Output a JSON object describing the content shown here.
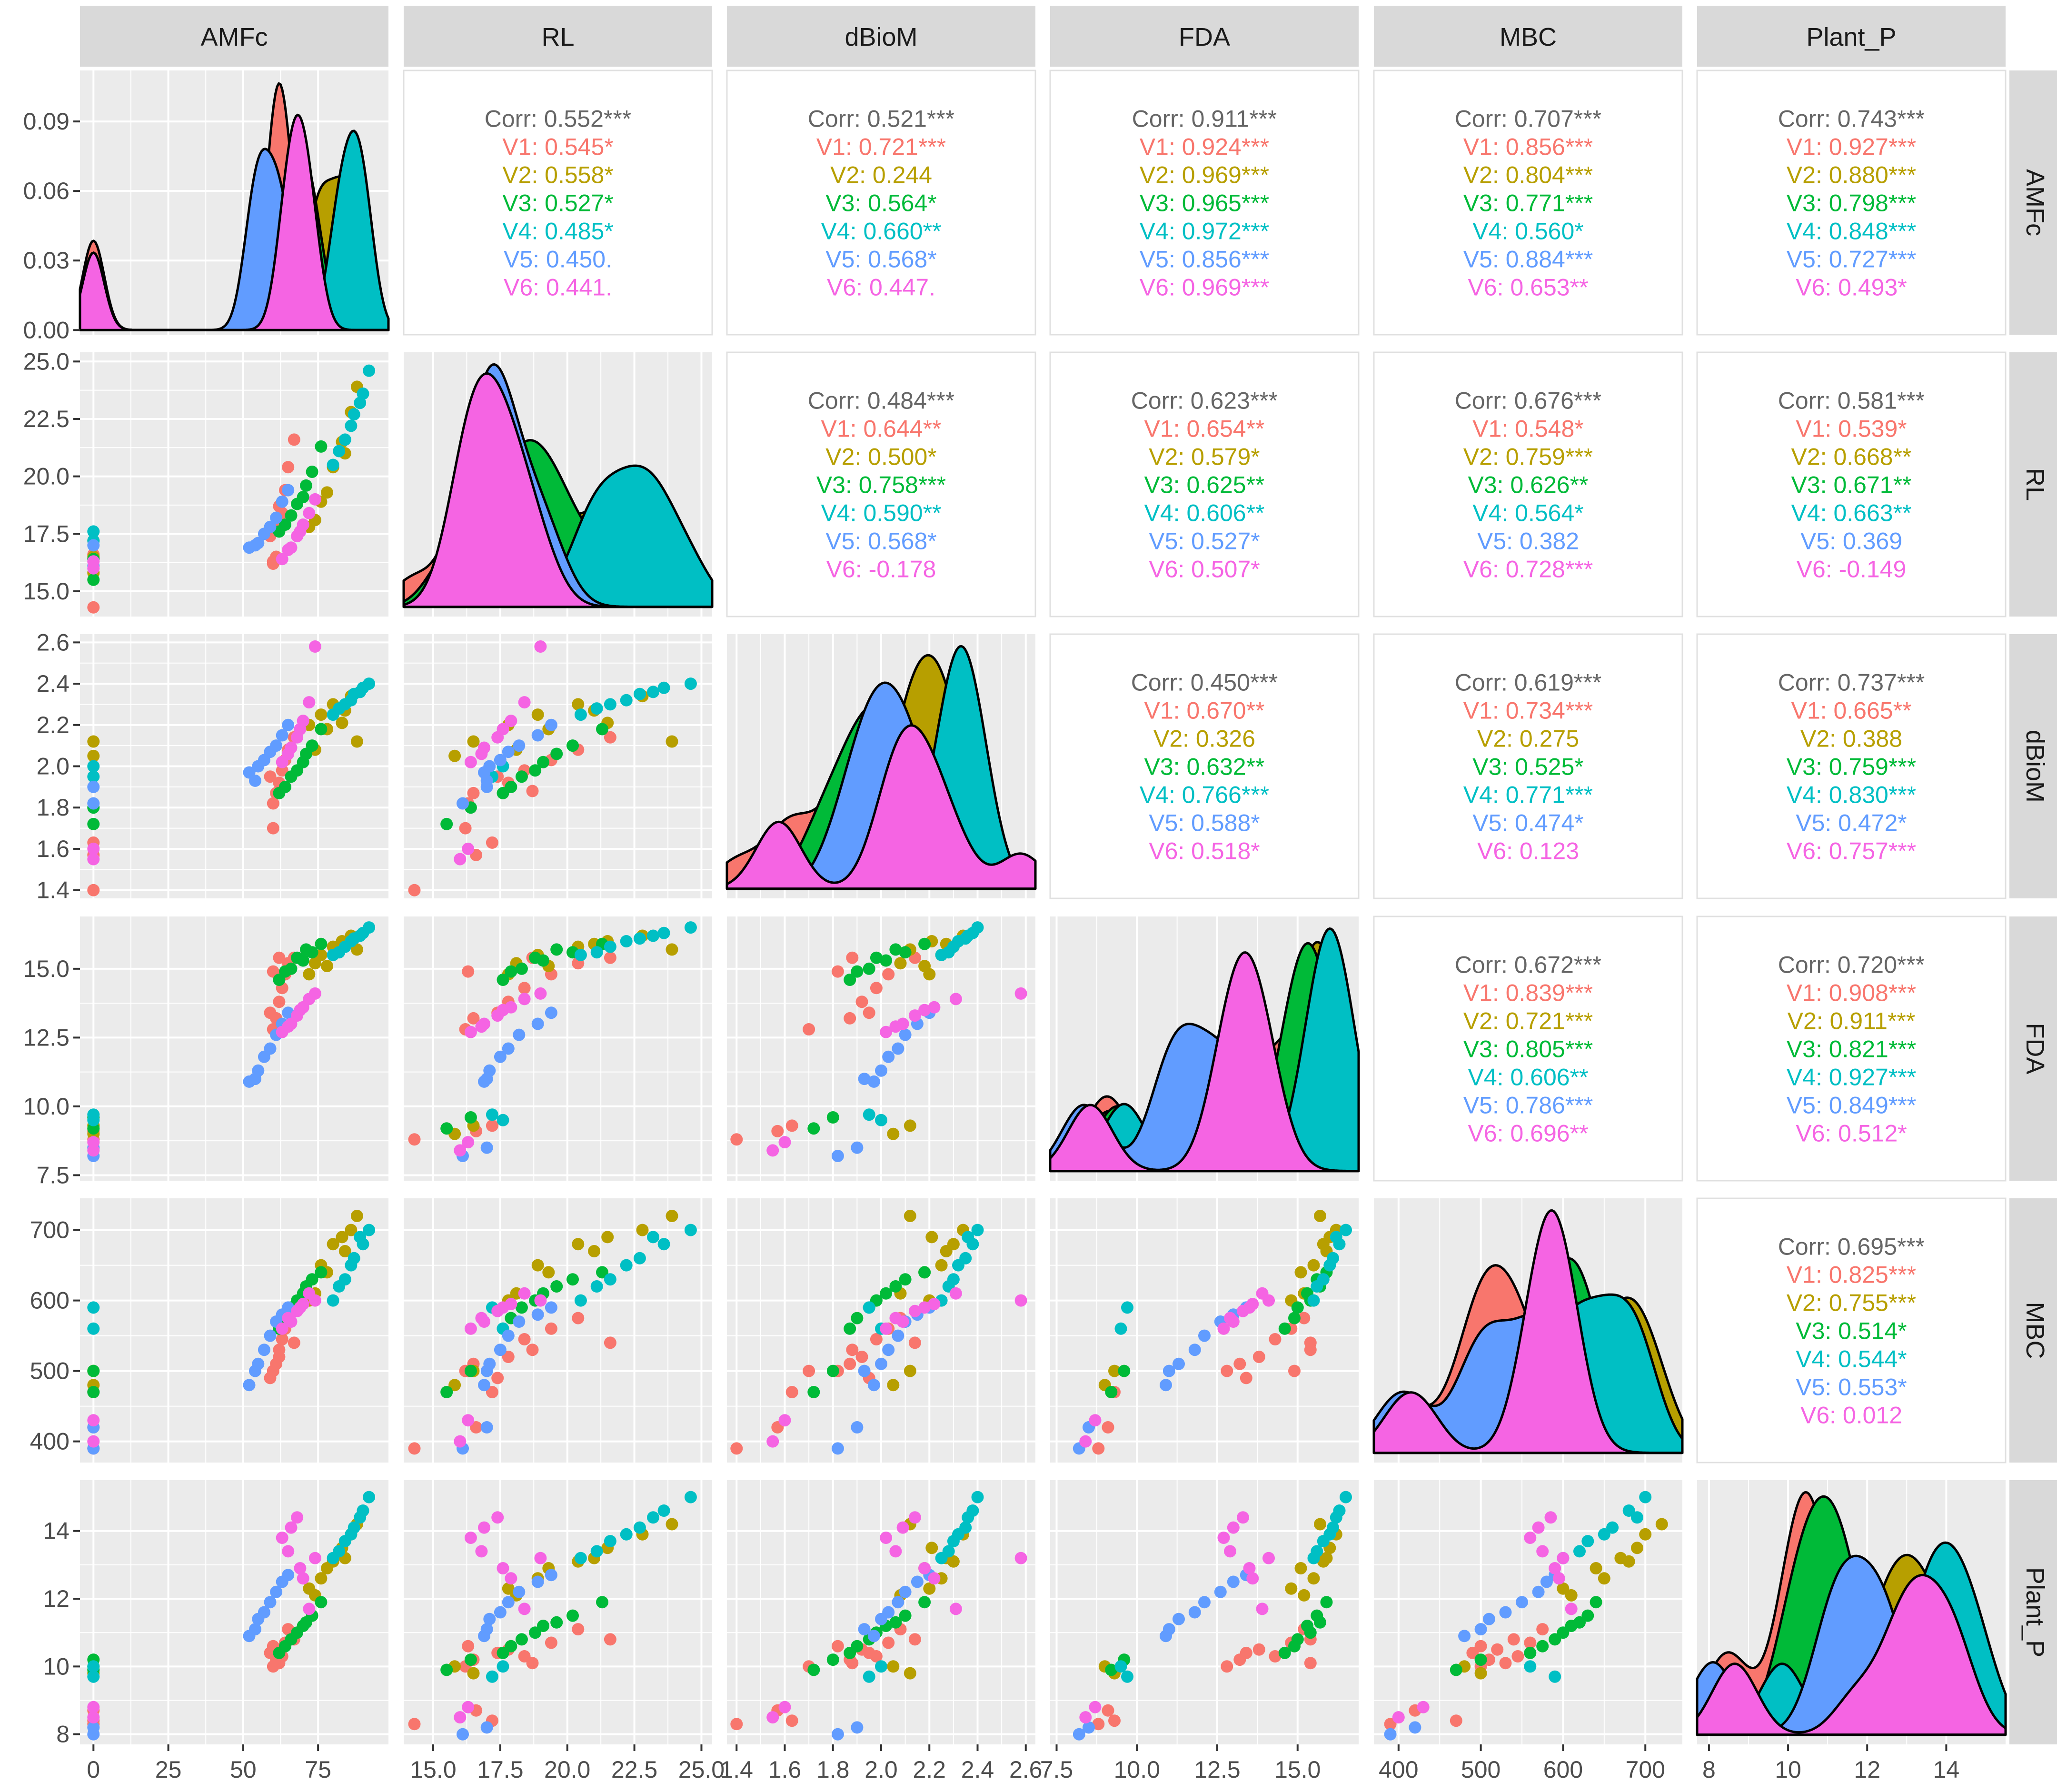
{
  "chart_data": {
    "type": "scatter",
    "title": "",
    "variables": [
      "AMFc",
      "RL",
      "dBioM",
      "FDA",
      "MBC",
      "Plant_P"
    ],
    "groups": [
      "V1",
      "V2",
      "V3",
      "V4",
      "V5",
      "V6"
    ],
    "group_colors": [
      "#F8766D",
      "#B79F00",
      "#00BA38",
      "#00BFC4",
      "#619CFF",
      "#F564E3"
    ],
    "corr_label_color": "#666666",
    "panel_background": "#EBEBEB",
    "grid_color": "#FFFFFF",
    "strip_background": "#D9D9D9",
    "x_ticks": {
      "AMFc": [
        "0",
        "25",
        "50",
        "75"
      ],
      "RL": [
        "15.0",
        "17.5",
        "20.0",
        "22.5",
        "25.0"
      ],
      "dBioM": [
        "1.4",
        "1.6",
        "1.8",
        "2.0",
        "2.2",
        "2.4",
        "2.6"
      ],
      "FDA": [
        "7.5",
        "10.0",
        "12.5",
        "15.0"
      ],
      "MBC": [
        "400",
        "500",
        "600",
        "700"
      ],
      "Plant_P": [
        "8",
        "10",
        "12",
        "14"
      ]
    },
    "x_tick_values": {
      "AMFc": [
        0,
        25,
        50,
        75
      ],
      "RL": [
        15.0,
        17.5,
        20.0,
        22.5,
        25.0
      ],
      "dBioM": [
        1.4,
        1.6,
        1.8,
        2.0,
        2.2,
        2.4,
        2.6
      ],
      "FDA": [
        7.5,
        10.0,
        12.5,
        15.0
      ],
      "MBC": [
        400,
        500,
        600,
        700
      ],
      "Plant_P": [
        8,
        10,
        12,
        14
      ]
    },
    "ranges": {
      "AMFc": [
        -4.5,
        98.5
      ],
      "RL": [
        13.9,
        25.4
      ],
      "dBioM": [
        1.36,
        2.64
      ],
      "FDA": [
        7.3,
        16.9
      ],
      "MBC": [
        370,
        745
      ],
      "Plant_P": [
        7.7,
        15.5
      ]
    },
    "y_ticks": {
      "AMFc": [
        "0.00",
        "0.03",
        "0.06",
        "0.09"
      ],
      "RL": [
        "15.0",
        "17.5",
        "20.0",
        "22.5",
        "25.0"
      ],
      "dBioM": [
        "1.4",
        "1.6",
        "1.8",
        "2.0",
        "2.2",
        "2.4",
        "2.6"
      ],
      "FDA": [
        "7.5",
        "10.0",
        "12.5",
        "15.0"
      ],
      "MBC": [
        "400",
        "500",
        "600",
        "700"
      ],
      "Plant_P": [
        "8",
        "10",
        "12",
        "14"
      ]
    },
    "y_tick_values": {
      "AMFc": [
        0.0,
        0.03,
        0.06,
        0.09
      ],
      "RL": [
        15.0,
        17.5,
        20.0,
        22.5,
        25.0
      ],
      "dBioM": [
        1.4,
        1.6,
        1.8,
        2.0,
        2.2,
        2.4,
        2.6
      ],
      "FDA": [
        7.5,
        10.0,
        12.5,
        15.0
      ],
      "MBC": [
        400,
        500,
        600,
        700
      ],
      "Plant_P": [
        8,
        10,
        12,
        14
      ]
    },
    "amfc_density_ylim": [
      -0.002,
      0.112
    ],
    "correlations": [
      {
        "row": "AMFc",
        "col": "RL",
        "lines": [
          "Corr: 0.552***",
          "V1: 0.545*",
          "V2: 0.558*",
          "V3: 0.527*",
          "V4: 0.485*",
          "V5: 0.450.",
          "V6: 0.441."
        ]
      },
      {
        "row": "AMFc",
        "col": "dBioM",
        "lines": [
          "Corr: 0.521***",
          "V1: 0.721***",
          "V2: 0.244",
          "V3: 0.564*",
          "V4: 0.660**",
          "V5: 0.568*",
          "V6: 0.447."
        ]
      },
      {
        "row": "AMFc",
        "col": "FDA",
        "lines": [
          "Corr: 0.911***",
          "V1: 0.924***",
          "V2: 0.969***",
          "V3: 0.965***",
          "V4: 0.972***",
          "V5: 0.856***",
          "V6: 0.969***"
        ]
      },
      {
        "row": "AMFc",
        "col": "MBC",
        "lines": [
          "Corr: 0.707***",
          "V1: 0.856***",
          "V2: 0.804***",
          "V3: 0.771***",
          "V4: 0.560*",
          "V5: 0.884***",
          "V6: 0.653**"
        ]
      },
      {
        "row": "AMFc",
        "col": "Plant_P",
        "lines": [
          "Corr: 0.743***",
          "V1: 0.927***",
          "V2: 0.880***",
          "V3: 0.798***",
          "V4: 0.848***",
          "V5: 0.727***",
          "V6: 0.493*"
        ]
      },
      {
        "row": "RL",
        "col": "dBioM",
        "lines": [
          "Corr: 0.484***",
          "V1: 0.644**",
          "V2: 0.500*",
          "V3: 0.758***",
          "V4: 0.590**",
          "V5: 0.568*",
          "V6: -0.178"
        ]
      },
      {
        "row": "RL",
        "col": "FDA",
        "lines": [
          "Corr: 0.623***",
          "V1: 0.654**",
          "V2: 0.579*",
          "V3: 0.625**",
          "V4: 0.606**",
          "V5: 0.527*",
          "V6: 0.507*"
        ]
      },
      {
        "row": "RL",
        "col": "MBC",
        "lines": [
          "Corr: 0.676***",
          "V1: 0.548*",
          "V2: 0.759***",
          "V3: 0.626**",
          "V4: 0.564*",
          "V5: 0.382",
          "V6: 0.728***"
        ]
      },
      {
        "row": "RL",
        "col": "Plant_P",
        "lines": [
          "Corr: 0.581***",
          "V1: 0.539*",
          "V2: 0.668**",
          "V3: 0.671**",
          "V4: 0.663**",
          "V5: 0.369",
          "V6: -0.149"
        ]
      },
      {
        "row": "dBioM",
        "col": "FDA",
        "lines": [
          "Corr: 0.450***",
          "V1: 0.670**",
          "V2: 0.326",
          "V3: 0.632**",
          "V4: 0.766***",
          "V5: 0.588*",
          "V6: 0.518*"
        ]
      },
      {
        "row": "dBioM",
        "col": "MBC",
        "lines": [
          "Corr: 0.619***",
          "V1: 0.734***",
          "V2: 0.275",
          "V3: 0.525*",
          "V4: 0.771***",
          "V5: 0.474*",
          "V6: 0.123"
        ]
      },
      {
        "row": "dBioM",
        "col": "Plant_P",
        "lines": [
          "Corr: 0.737***",
          "V1: 0.665**",
          "V2: 0.388",
          "V3: 0.759***",
          "V4: 0.830***",
          "V5: 0.472*",
          "V6: 0.757***"
        ]
      },
      {
        "row": "FDA",
        "col": "MBC",
        "lines": [
          "Corr: 0.672***",
          "V1: 0.839***",
          "V2: 0.721***",
          "V3: 0.805***",
          "V4: 0.606**",
          "V5: 0.786***",
          "V6: 0.696**"
        ]
      },
      {
        "row": "FDA",
        "col": "Plant_P",
        "lines": [
          "Corr: 0.720***",
          "V1: 0.908***",
          "V2: 0.911***",
          "V3: 0.821***",
          "V4: 0.927***",
          "V5: 0.849***",
          "V6: 0.512*"
        ]
      },
      {
        "row": "MBC",
        "col": "Plant_P",
        "lines": [
          "Corr: 0.695***",
          "V1: 0.825***",
          "V2: 0.755***",
          "V3: 0.514*",
          "V4: 0.544*",
          "V5: 0.553*",
          "V6: 0.012"
        ]
      }
    ],
    "observations": [
      {
        "group": "V1",
        "values": [
          [
            0,
            14.3,
            1.4,
            8.8,
            390,
            8.3
          ],
          [
            0,
            16.6,
            1.57,
            9.1,
            420,
            8.7
          ],
          [
            0,
            17.2,
            1.63,
            9.3,
            470,
            8.4
          ],
          [
            60,
            16.2,
            1.7,
            12.8,
            500,
            10.0
          ],
          [
            61,
            16.5,
            1.87,
            13.2,
            510,
            10.2
          ],
          [
            62,
            17.8,
            1.92,
            13.8,
            520,
            10.5
          ],
          [
            63,
            18.4,
            1.98,
            14.3,
            545,
            10.3
          ],
          [
            64,
            19.4,
            2.03,
            14.8,
            560,
            10.7
          ],
          [
            65,
            20.4,
            2.08,
            15.2,
            575,
            11.1
          ],
          [
            67,
            21.6,
            2.14,
            15.4,
            540,
            10.8
          ],
          [
            60,
            16.3,
            1.82,
            14.9,
            500,
            10.6
          ],
          [
            62,
            18.7,
            1.88,
            15.4,
            530,
            10.1
          ],
          [
            59,
            17.4,
            1.95,
            13.4,
            490,
            10.4
          ]
        ]
      },
      {
        "group": "V2",
        "values": [
          [
            0,
            15.8,
            2.05,
            9.0,
            480,
            10.0
          ],
          [
            0,
            16.5,
            2.12,
            9.3,
            500,
            9.8
          ],
          [
            72,
            17.8,
            2.2,
            14.8,
            600,
            12.3
          ],
          [
            76,
            18.9,
            2.25,
            15.5,
            650,
            12.6
          ],
          [
            80,
            20.4,
            2.3,
            15.8,
            680,
            13.1
          ],
          [
            83,
            21.5,
            2.21,
            16.0,
            690,
            13.5
          ],
          [
            86,
            22.8,
            2.34,
            16.2,
            700,
            13.9
          ],
          [
            88,
            23.9,
            2.12,
            15.7,
            720,
            14.2
          ],
          [
            78,
            19.3,
            2.18,
            15.1,
            640,
            12.9
          ],
          [
            84,
            21.0,
            2.27,
            15.9,
            670,
            13.2
          ],
          [
            74,
            18.1,
            2.08,
            15.2,
            610,
            12.1
          ]
        ]
      },
      {
        "group": "V3",
        "values": [
          [
            0,
            15.5,
            1.72,
            9.2,
            470,
            9.9
          ],
          [
            0,
            16.4,
            1.8,
            9.6,
            500,
            10.2
          ],
          [
            62,
            17.6,
            1.87,
            14.6,
            560,
            10.4
          ],
          [
            66,
            18.3,
            1.95,
            15.0,
            590,
            10.8
          ],
          [
            70,
            19.1,
            2.02,
            15.3,
            610,
            11.2
          ],
          [
            73,
            20.2,
            2.1,
            15.6,
            630,
            11.5
          ],
          [
            76,
            21.3,
            2.18,
            15.9,
            640,
            11.9
          ],
          [
            64,
            17.9,
            1.9,
            14.9,
            575,
            10.6
          ],
          [
            68,
            18.8,
            1.98,
            15.4,
            600,
            11.0
          ],
          [
            71,
            19.6,
            2.06,
            15.7,
            620,
            11.3
          ]
        ]
      },
      {
        "group": "V4",
        "values": [
          [
            0,
            17.2,
            1.95,
            9.7,
            590,
            9.7
          ],
          [
            0,
            17.6,
            2.0,
            9.5,
            560,
            10.0
          ],
          [
            80,
            20.5,
            2.25,
            15.5,
            600,
            13.2
          ],
          [
            84,
            21.6,
            2.3,
            15.8,
            630,
            13.7
          ],
          [
            87,
            22.7,
            2.35,
            16.1,
            660,
            14.1
          ],
          [
            90,
            23.6,
            2.38,
            16.3,
            680,
            14.6
          ],
          [
            92,
            24.6,
            2.4,
            16.5,
            700,
            15.0
          ],
          [
            86,
            22.2,
            2.32,
            16.0,
            650,
            13.9
          ],
          [
            89,
            23.2,
            2.36,
            16.2,
            690,
            14.4
          ],
          [
            82,
            21.1,
            2.28,
            15.6,
            620,
            13.4
          ]
        ]
      },
      {
        "group": "V5",
        "values": [
          [
            0,
            16.1,
            1.82,
            8.2,
            390,
            8.0
          ],
          [
            0,
            17.0,
            1.9,
            8.5,
            420,
            8.2
          ],
          [
            52,
            16.9,
            1.97,
            10.9,
            480,
            10.9
          ],
          [
            55,
            17.1,
            2.0,
            11.3,
            510,
            11.4
          ],
          [
            57,
            17.5,
            2.03,
            11.8,
            530,
            11.6
          ],
          [
            59,
            17.8,
            2.07,
            12.1,
            550,
            11.9
          ],
          [
            61,
            18.2,
            2.1,
            12.6,
            570,
            12.2
          ],
          [
            63,
            18.9,
            2.15,
            13.0,
            580,
            12.5
          ],
          [
            65,
            19.4,
            2.2,
            13.4,
            590,
            12.7
          ],
          [
            54,
            17.0,
            1.93,
            11.0,
            500,
            11.1
          ]
        ]
      },
      {
        "group": "V6",
        "values": [
          [
            0,
            16.0,
            1.55,
            8.4,
            400,
            8.5
          ],
          [
            0,
            16.3,
            1.6,
            8.7,
            430,
            8.8
          ],
          [
            63,
            16.4,
            2.02,
            12.7,
            560,
            13.8
          ],
          [
            66,
            16.9,
            2.09,
            13.0,
            570,
            14.1
          ],
          [
            68,
            17.4,
            2.14,
            13.3,
            585,
            14.4
          ],
          [
            70,
            17.9,
            2.22,
            13.6,
            595,
            12.6
          ],
          [
            72,
            18.4,
            2.31,
            13.9,
            610,
            11.7
          ],
          [
            74,
            19.0,
            2.58,
            14.1,
            600,
            13.2
          ],
          [
            69,
            17.6,
            2.18,
            13.5,
            590,
            12.9
          ],
          [
            65,
            16.8,
            2.06,
            12.9,
            575,
            13.4
          ]
        ]
      }
    ]
  }
}
